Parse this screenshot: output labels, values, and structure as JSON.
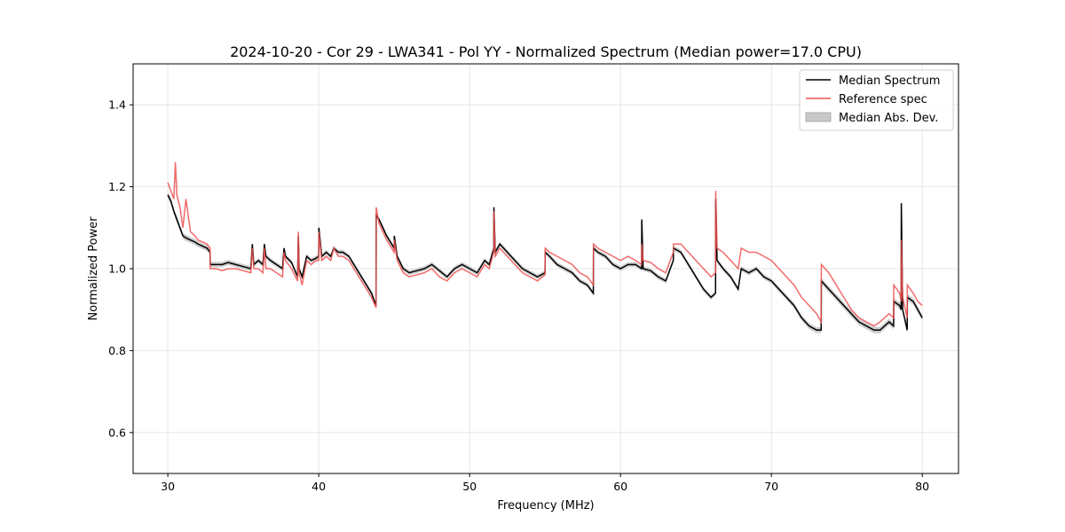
{
  "chart_data": {
    "type": "line",
    "title": "2024-10-20 - Cor 29 - LWA341 - Pol YY - Normalized Spectrum (Median power=17.0 CPU)",
    "xlabel": "Frequency (MHz)",
    "ylabel": "Normalized Power",
    "xlim": [
      27.7,
      82.4
    ],
    "ylim": [
      0.5,
      1.5
    ],
    "xticks": [
      30,
      40,
      50,
      60,
      70,
      80
    ],
    "yticks": [
      0.6,
      0.8,
      1.0,
      1.2,
      1.4
    ],
    "grid": true,
    "legend_position": "top-right",
    "legend": [
      "Median Spectrum",
      "Reference spec",
      "Median Abs. Dev."
    ],
    "colors": {
      "median": "#000000",
      "reference": "#f05050",
      "mad": "#c8c8c8"
    },
    "series": [
      {
        "name": "Median Spectrum",
        "x": [
          30.0,
          30.2,
          30.4,
          30.6,
          30.8,
          31.0,
          31.2,
          31.5,
          31.8,
          32.0,
          32.3,
          32.6,
          32.8,
          32.81,
          33.2,
          33.6,
          34.0,
          34.5,
          35.0,
          35.5,
          35.6,
          35.7,
          36.0,
          36.3,
          36.4,
          36.5,
          36.8,
          37.2,
          37.6,
          37.7,
          37.8,
          38.2,
          38.6,
          38.65,
          38.7,
          38.9,
          39.2,
          39.5,
          39.8,
          40.0,
          40.01,
          40.2,
          40.5,
          40.8,
          41.0,
          41.3,
          41.6,
          42.0,
          42.5,
          43.0,
          43.5,
          43.8,
          43.81,
          44.0,
          44.5,
          45.0,
          45.01,
          45.2,
          45.6,
          46.0,
          46.5,
          47.0,
          47.5,
          48.0,
          48.5,
          49.0,
          49.5,
          50.0,
          50.5,
          51.0,
          51.3,
          51.6,
          51.61,
          51.7,
          52.0,
          52.5,
          53.0,
          53.5,
          54.0,
          54.5,
          55.0,
          55.01,
          55.3,
          55.8,
          56.3,
          56.8,
          57.3,
          57.8,
          58.2,
          58.21,
          58.5,
          59.0,
          59.5,
          60.0,
          60.5,
          61.0,
          61.4,
          61.41,
          61.5,
          62.0,
          62.5,
          63.0,
          63.5,
          63.51,
          64.0,
          64.5,
          65.0,
          65.5,
          66.0,
          66.3,
          66.31,
          66.4,
          66.8,
          67.3,
          67.8,
          68.0,
          68.5,
          69.0,
          69.5,
          70.0,
          70.5,
          71.0,
          71.5,
          72.0,
          72.5,
          73.0,
          73.3,
          73.31,
          73.8,
          74.3,
          74.8,
          75.3,
          75.8,
          76.3,
          76.8,
          77.2,
          77.5,
          77.8,
          78.1,
          78.11,
          78.5,
          78.6,
          78.61,
          78.7,
          79.0,
          79.01,
          79.4,
          79.7,
          80.0
        ],
        "values": [
          1.18,
          1.165,
          1.14,
          1.12,
          1.1,
          1.08,
          1.075,
          1.07,
          1.065,
          1.06,
          1.055,
          1.05,
          1.04,
          1.01,
          1.01,
          1.01,
          1.015,
          1.01,
          1.005,
          1.0,
          1.06,
          1.01,
          1.02,
          1.01,
          1.06,
          1.03,
          1.02,
          1.01,
          1.0,
          1.05,
          1.03,
          1.015,
          0.98,
          1.08,
          1.0,
          0.98,
          1.03,
          1.02,
          1.025,
          1.03,
          1.1,
          1.03,
          1.04,
          1.03,
          1.05,
          1.04,
          1.04,
          1.03,
          1.0,
          0.97,
          0.94,
          0.91,
          1.13,
          1.12,
          1.08,
          1.05,
          1.08,
          1.03,
          1.0,
          0.99,
          0.995,
          1.0,
          1.01,
          0.995,
          0.98,
          1.0,
          1.01,
          1.0,
          0.99,
          1.02,
          1.01,
          1.05,
          1.15,
          1.04,
          1.06,
          1.04,
          1.02,
          1.0,
          0.99,
          0.98,
          0.99,
          1.04,
          1.03,
          1.01,
          1.0,
          0.99,
          0.97,
          0.96,
          0.94,
          1.05,
          1.04,
          1.03,
          1.01,
          1.0,
          1.01,
          1.01,
          1.0,
          1.12,
          1.0,
          0.995,
          0.98,
          0.97,
          1.02,
          1.05,
          1.04,
          1.01,
          0.98,
          0.95,
          0.93,
          0.94,
          1.17,
          1.02,
          1.0,
          0.98,
          0.95,
          1.0,
          0.99,
          1.0,
          0.98,
          0.97,
          0.95,
          0.93,
          0.91,
          0.88,
          0.86,
          0.85,
          0.85,
          0.97,
          0.95,
          0.93,
          0.91,
          0.89,
          0.87,
          0.86,
          0.85,
          0.85,
          0.86,
          0.87,
          0.86,
          0.92,
          0.91,
          0.9,
          1.16,
          0.9,
          0.85,
          0.93,
          0.92,
          0.9,
          0.88
        ]
      },
      {
        "name": "Reference spec",
        "x": [
          30.0,
          30.2,
          30.4,
          30.5,
          30.6,
          30.8,
          31.0,
          31.2,
          31.5,
          31.8,
          32.0,
          32.3,
          32.6,
          32.8,
          32.81,
          33.2,
          33.6,
          34.0,
          34.5,
          35.0,
          35.5,
          35.6,
          35.7,
          36.0,
          36.3,
          36.4,
          36.5,
          36.8,
          37.2,
          37.6,
          37.7,
          37.8,
          38.2,
          38.6,
          38.65,
          38.7,
          38.9,
          39.2,
          39.5,
          39.8,
          40.0,
          40.01,
          40.2,
          40.5,
          40.8,
          41.0,
          41.3,
          41.6,
          42.0,
          42.5,
          43.0,
          43.5,
          43.8,
          43.81,
          44.0,
          44.5,
          45.0,
          45.01,
          45.2,
          45.6,
          46.0,
          46.5,
          47.0,
          47.5,
          48.0,
          48.5,
          49.0,
          49.5,
          50.0,
          50.5,
          51.0,
          51.3,
          51.6,
          51.61,
          51.7,
          52.0,
          52.5,
          53.0,
          53.5,
          54.0,
          54.5,
          55.0,
          55.01,
          55.3,
          55.8,
          56.3,
          56.8,
          57.3,
          57.8,
          58.2,
          58.21,
          58.5,
          59.0,
          59.5,
          60.0,
          60.5,
          61.0,
          61.4,
          61.41,
          61.5,
          62.0,
          62.5,
          63.0,
          63.5,
          63.51,
          64.0,
          64.5,
          65.0,
          65.5,
          66.0,
          66.3,
          66.31,
          66.4,
          66.8,
          67.3,
          67.8,
          68.0,
          68.5,
          69.0,
          69.5,
          70.0,
          70.5,
          71.0,
          71.5,
          72.0,
          72.5,
          73.0,
          73.3,
          73.31,
          73.8,
          74.3,
          74.8,
          75.3,
          75.8,
          76.3,
          76.8,
          77.2,
          77.5,
          77.8,
          78.1,
          78.11,
          78.5,
          78.6,
          78.61,
          78.7,
          79.0,
          79.01,
          79.4,
          79.7,
          80.0
        ],
        "values": [
          1.21,
          1.19,
          1.17,
          1.26,
          1.18,
          1.15,
          1.1,
          1.17,
          1.09,
          1.08,
          1.07,
          1.065,
          1.06,
          1.05,
          1.0,
          1.0,
          0.995,
          1.0,
          1.0,
          0.995,
          0.99,
          1.05,
          1.0,
          1.0,
          0.99,
          1.05,
          1.0,
          1.0,
          0.99,
          0.98,
          1.04,
          1.02,
          1.0,
          0.97,
          1.09,
          0.99,
          0.96,
          1.02,
          1.01,
          1.02,
          1.02,
          1.09,
          1.02,
          1.03,
          1.02,
          1.05,
          1.03,
          1.03,
          1.02,
          0.99,
          0.96,
          0.93,
          0.905,
          1.15,
          1.11,
          1.07,
          1.04,
          1.07,
          1.02,
          0.99,
          0.98,
          0.985,
          0.99,
          1.0,
          0.98,
          0.97,
          0.99,
          1.0,
          0.99,
          0.98,
          1.01,
          1.0,
          1.04,
          1.14,
          1.03,
          1.05,
          1.03,
          1.01,
          0.99,
          0.98,
          0.97,
          0.985,
          1.05,
          1.04,
          1.03,
          1.02,
          1.01,
          0.99,
          0.98,
          0.96,
          1.06,
          1.05,
          1.04,
          1.03,
          1.02,
          1.03,
          1.02,
          1.01,
          1.06,
          1.02,
          1.015,
          1.0,
          0.99,
          1.04,
          1.06,
          1.06,
          1.04,
          1.02,
          1.0,
          0.98,
          0.99,
          1.19,
          1.05,
          1.04,
          1.02,
          1.0,
          1.05,
          1.04,
          1.04,
          1.03,
          1.02,
          1.0,
          0.98,
          0.96,
          0.93,
          0.91,
          0.89,
          0.87,
          1.01,
          0.99,
          0.96,
          0.93,
          0.9,
          0.88,
          0.87,
          0.86,
          0.87,
          0.88,
          0.89,
          0.88,
          0.96,
          0.94,
          0.92,
          1.07,
          0.93,
          0.88,
          0.96,
          0.94,
          0.92,
          0.91
        ]
      }
    ],
    "mad": {
      "name": "Median Abs. Dev.",
      "x": [
        30.0,
        35.0,
        40.0,
        45.0,
        50.0,
        55.0,
        60.0,
        65.0,
        70.0,
        75.0,
        80.0
      ],
      "half_width": [
        0.008,
        0.006,
        0.006,
        0.006,
        0.006,
        0.006,
        0.006,
        0.006,
        0.006,
        0.008,
        0.008
      ]
    }
  }
}
